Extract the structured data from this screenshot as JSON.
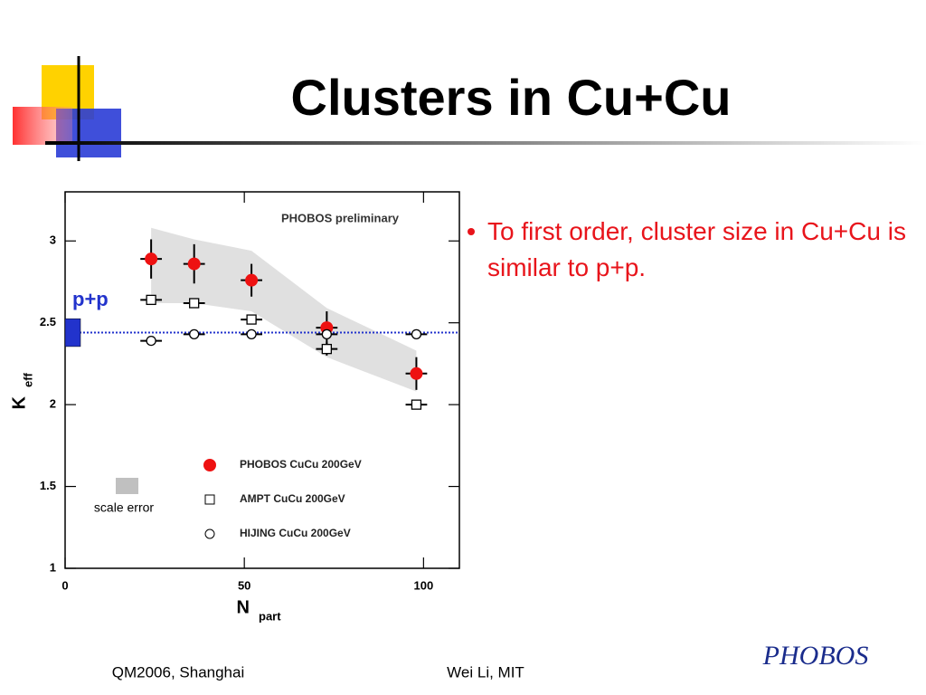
{
  "slide": {
    "title": "Clusters in Cu+Cu",
    "bullet": "To first order, cluster size in Cu+Cu is similar to p+p.",
    "footer_left": "QM2006, Shanghai",
    "footer_center": "Wei Li, MIT",
    "logo": "PHOBOS"
  },
  "chart_data": {
    "type": "scatter",
    "annotation": "PHOBOS preliminary",
    "xlabel": {
      "main": "N",
      "sub": "part"
    },
    "ylabel": {
      "main": "K",
      "sub": "eff"
    },
    "xlim": [
      0,
      110
    ],
    "ylim": [
      1,
      3.3
    ],
    "xticks": [
      0,
      50,
      100
    ],
    "yticks": [
      1,
      1.5,
      2,
      2.5,
      3
    ],
    "legend": "lower center",
    "series": [
      {
        "name": "PHOBOS CuCu 200GeV",
        "color": "#ee1111",
        "marker": "filled-circle",
        "x": [
          24,
          36,
          52,
          73,
          98
        ],
        "values": [
          2.89,
          2.86,
          2.76,
          2.47,
          2.19
        ],
        "yerr": [
          0.12,
          0.12,
          0.1,
          0.1,
          0.1
        ],
        "xerr": [
          3,
          3,
          3,
          3,
          3
        ]
      },
      {
        "name": "AMPT CuCu 200GeV",
        "color": "#000000",
        "marker": "open-square",
        "x": [
          24,
          36,
          52,
          73,
          98
        ],
        "values": [
          2.64,
          2.62,
          2.52,
          2.34,
          2.0
        ],
        "yerr": [
          0.02,
          0.03,
          0.03,
          0.04,
          0.02
        ],
        "xerr": [
          3,
          3,
          3,
          3,
          3
        ]
      },
      {
        "name": "HIJING CuCu 200GeV",
        "color": "#000000",
        "marker": "open-circle",
        "x": [
          24,
          36,
          52,
          73,
          98
        ],
        "values": [
          2.39,
          2.43,
          2.43,
          2.43,
          2.43
        ],
        "yerr": [
          0.01,
          0.01,
          0.01,
          0.01,
          0.01
        ],
        "xerr": [
          3,
          3,
          3,
          3,
          3
        ]
      }
    ],
    "band": {
      "color": "#e0e0e0",
      "x": [
        24,
        36,
        52,
        73,
        98
      ],
      "upper": [
        3.08,
        3.01,
        2.94,
        2.59,
        2.33
      ],
      "lower": [
        2.62,
        2.62,
        2.57,
        2.29,
        2.08
      ]
    },
    "reference": {
      "label": "p+p",
      "color": "#2233cc",
      "value": 2.44,
      "error": 0.085
    },
    "scale_error_label": "scale error"
  }
}
